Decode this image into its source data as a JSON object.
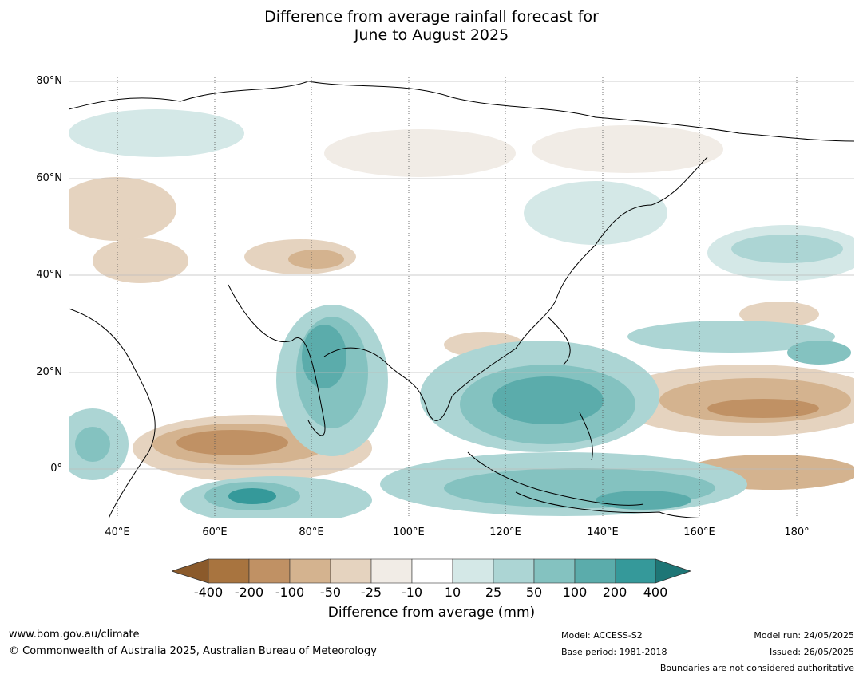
{
  "title": {
    "line1": "Difference from average rainfall forecast for",
    "line2": "June to August 2025"
  },
  "map": {
    "lat_labels": [
      "80°N",
      "60°N",
      "40°N",
      "20°N",
      "0°"
    ],
    "lon_labels": [
      "40°E",
      "60°E",
      "80°E",
      "100°E",
      "120°E",
      "140°E",
      "160°E",
      "180°"
    ]
  },
  "colorbar": {
    "ticks": [
      "-400",
      "-200",
      "-100",
      "-50",
      "-25",
      "-10",
      "10",
      "25",
      "50",
      "100",
      "200",
      "400"
    ],
    "colors": [
      "#8b5a2b",
      "#a8743f",
      "#c09164",
      "#d4b38f",
      "#e5d3bf",
      "#f1ece6",
      "#ffffff",
      "#d4e8e7",
      "#acd5d4",
      "#84c2c0",
      "#5bacab",
      "#35999a",
      "#1e7676"
    ],
    "label": "Difference from average (mm)"
  },
  "footer": {
    "url": "www.bom.gov.au/climate",
    "copyright": "© Commonwealth of Australia 2025, Australian Bureau of Meteorology",
    "model": "Model: ACCESS-S2",
    "base_period": "Base period: 1981-2018",
    "model_run": "Model run: 24/05/2025",
    "issued": "Issued: 26/05/2025",
    "disclaimer": "Boundaries are not considered authoritative"
  }
}
